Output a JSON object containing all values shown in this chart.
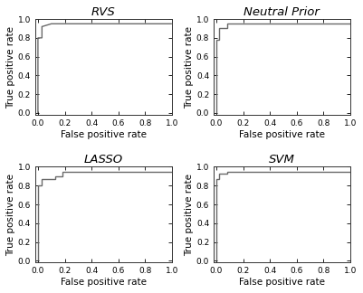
{
  "subplots": [
    {
      "title": "RVS",
      "fpr": [
        0.0,
        0.0,
        0.03,
        0.03,
        0.1,
        1.0
      ],
      "tpr": [
        0.0,
        0.8,
        0.8,
        0.92,
        0.95,
        0.95
      ]
    },
    {
      "title": "Neutral Prior",
      "fpr": [
        0.0,
        0.0,
        0.02,
        0.02,
        0.08,
        0.08,
        1.0
      ],
      "tpr": [
        0.0,
        0.78,
        0.78,
        0.9,
        0.9,
        0.95,
        0.95
      ]
    },
    {
      "title": "LASSO",
      "fpr": [
        0.0,
        0.0,
        0.03,
        0.03,
        0.13,
        0.13,
        0.18,
        0.18,
        1.0
      ],
      "tpr": [
        0.0,
        0.8,
        0.8,
        0.87,
        0.87,
        0.9,
        0.9,
        0.95,
        0.95
      ]
    },
    {
      "title": "SVM",
      "fpr": [
        0.0,
        0.0,
        0.02,
        0.02,
        0.08,
        0.08,
        1.0
      ],
      "tpr": [
        0.0,
        0.87,
        0.87,
        0.93,
        0.93,
        0.95,
        0.95
      ]
    }
  ],
  "xlabel": "False positive rate",
  "ylabel": "True positive rate",
  "xlim": [
    -0.02,
    1.0
  ],
  "ylim": [
    -0.02,
    1.0
  ],
  "xticks": [
    0.0,
    0.2,
    0.4,
    0.6,
    0.8,
    1.0
  ],
  "yticks": [
    0.0,
    0.2,
    0.4,
    0.6,
    0.8,
    1.0
  ],
  "line_color": "#696969",
  "line_width": 1.0,
  "bg_color": "#ffffff",
  "axes_color": "#333333",
  "tick_label_fontsize": 6.5,
  "axis_label_fontsize": 7.5,
  "title_fontsize": 9.5
}
